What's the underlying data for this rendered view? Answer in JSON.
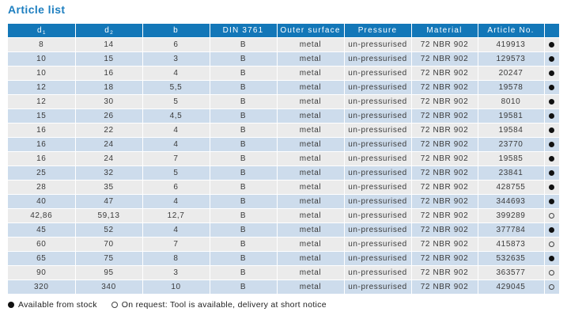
{
  "page": {
    "title": "Article list"
  },
  "colors": {
    "header_bg": "#1377b8",
    "row_odd": "#ebebeb",
    "row_even": "#cddcec",
    "title_color": "#1e7fc0"
  },
  "table": {
    "columns": [
      {
        "label": "d",
        "sub": "1"
      },
      {
        "label": "d",
        "sub": "2"
      },
      {
        "label": "b",
        "sub": ""
      },
      {
        "label": "DIN 3761",
        "sub": ""
      },
      {
        "label": "Outer surface",
        "sub": ""
      },
      {
        "label": "Pressure",
        "sub": ""
      },
      {
        "label": "Material",
        "sub": ""
      },
      {
        "label": "Article No.",
        "sub": ""
      },
      {
        "label": "",
        "sub": ""
      }
    ],
    "rows": [
      {
        "d1": "8",
        "d2": "14",
        "b": "6",
        "din": "B",
        "outer": "metal",
        "pressure": "un-pressurised",
        "material": "72 NBR 902",
        "article": "419913",
        "stock": "filled"
      },
      {
        "d1": "10",
        "d2": "15",
        "b": "3",
        "din": "B",
        "outer": "metal",
        "pressure": "un-pressurised",
        "material": "72 NBR 902",
        "article": "129573",
        "stock": "filled"
      },
      {
        "d1": "10",
        "d2": "16",
        "b": "4",
        "din": "B",
        "outer": "metal",
        "pressure": "un-pressurised",
        "material": "72 NBR 902",
        "article": "20247",
        "stock": "filled"
      },
      {
        "d1": "12",
        "d2": "18",
        "b": "5,5",
        "din": "B",
        "outer": "metal",
        "pressure": "un-pressurised",
        "material": "72 NBR 902",
        "article": "19578",
        "stock": "filled"
      },
      {
        "d1": "12",
        "d2": "30",
        "b": "5",
        "din": "B",
        "outer": "metal",
        "pressure": "un-pressurised",
        "material": "72 NBR 902",
        "article": "8010",
        "stock": "filled"
      },
      {
        "d1": "15",
        "d2": "26",
        "b": "4,5",
        "din": "B",
        "outer": "metal",
        "pressure": "un-pressurised",
        "material": "72 NBR 902",
        "article": "19581",
        "stock": "filled"
      },
      {
        "d1": "16",
        "d2": "22",
        "b": "4",
        "din": "B",
        "outer": "metal",
        "pressure": "un-pressurised",
        "material": "72 NBR 902",
        "article": "19584",
        "stock": "filled"
      },
      {
        "d1": "16",
        "d2": "24",
        "b": "4",
        "din": "B",
        "outer": "metal",
        "pressure": "un-pressurised",
        "material": "72 NBR 902",
        "article": "23770",
        "stock": "filled"
      },
      {
        "d1": "16",
        "d2": "24",
        "b": "7",
        "din": "B",
        "outer": "metal",
        "pressure": "un-pressurised",
        "material": "72 NBR 902",
        "article": "19585",
        "stock": "filled"
      },
      {
        "d1": "25",
        "d2": "32",
        "b": "5",
        "din": "B",
        "outer": "metal",
        "pressure": "un-pressurised",
        "material": "72 NBR 902",
        "article": "23841",
        "stock": "filled"
      },
      {
        "d1": "28",
        "d2": "35",
        "b": "6",
        "din": "B",
        "outer": "metal",
        "pressure": "un-pressurised",
        "material": "72 NBR 902",
        "article": "428755",
        "stock": "filled"
      },
      {
        "d1": "40",
        "d2": "47",
        "b": "4",
        "din": "B",
        "outer": "metal",
        "pressure": "un-pressurised",
        "material": "72 NBR 902",
        "article": "344693",
        "stock": "filled"
      },
      {
        "d1": "42,86",
        "d2": "59,13",
        "b": "12,7",
        "din": "B",
        "outer": "metal",
        "pressure": "un-pressurised",
        "material": "72 NBR 902",
        "article": "399289",
        "stock": "open"
      },
      {
        "d1": "45",
        "d2": "52",
        "b": "4",
        "din": "B",
        "outer": "metal",
        "pressure": "un-pressurised",
        "material": "72 NBR 902",
        "article": "377784",
        "stock": "filled"
      },
      {
        "d1": "60",
        "d2": "70",
        "b": "7",
        "din": "B",
        "outer": "metal",
        "pressure": "un-pressurised",
        "material": "72 NBR 902",
        "article": "415873",
        "stock": "open"
      },
      {
        "d1": "65",
        "d2": "75",
        "b": "8",
        "din": "B",
        "outer": "metal",
        "pressure": "un-pressurised",
        "material": "72 NBR 902",
        "article": "532635",
        "stock": "filled"
      },
      {
        "d1": "90",
        "d2": "95",
        "b": "3",
        "din": "B",
        "outer": "metal",
        "pressure": "un-pressurised",
        "material": "72 NBR 902",
        "article": "363577",
        "stock": "open"
      },
      {
        "d1": "320",
        "d2": "340",
        "b": "10",
        "din": "B",
        "outer": "metal",
        "pressure": "un-pressurised",
        "material": "72 NBR 902",
        "article": "429045",
        "stock": "open"
      }
    ]
  },
  "legend": {
    "stock_label": "Available from stock",
    "request_label": "On request: Tool is available, delivery at short notice"
  }
}
